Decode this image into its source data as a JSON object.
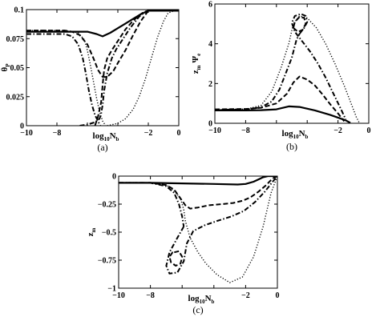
{
  "chart_data": [
    {
      "type": "line",
      "panel_label": "(a)",
      "xlabel_main": "log",
      "xlabel_sub": "10",
      "xlabel_tail": "N",
      "xlabel_tail_sub": "b",
      "ylabel_main": "θ",
      "ylabel_sub": "P",
      "xlim": [
        -10,
        0
      ],
      "ylim": [
        0,
        0.1
      ],
      "xticks": [
        -10,
        -8,
        -6,
        -4,
        -2,
        0
      ],
      "xtick_labels": [
        "−10",
        "−8",
        "",
        "",
        "−2",
        "0"
      ],
      "yticks": [
        0,
        0.025,
        0.05,
        0.075,
        0.1
      ],
      "ytick_labels": [
        "0",
        "0.025",
        "0.05",
        "0.075",
        "0.1"
      ],
      "grid": false,
      "series": [
        {
          "style": "solid",
          "x": [
            -10,
            -7,
            -6,
            -5.4,
            -5,
            -4.5,
            -4,
            -3.5,
            -3,
            -2.5,
            -2,
            -1,
            0
          ],
          "y": [
            0.081,
            0.081,
            0.081,
            0.079,
            0.077,
            0.08,
            0.084,
            0.088,
            0.092,
            0.096,
            0.099,
            0.099,
            0.099
          ]
        },
        {
          "style": "dashed",
          "x": [
            -10,
            -7.5,
            -7,
            -6.5,
            -6,
            -5.6,
            -5.3,
            -5,
            -4.7,
            -4.3,
            -4,
            -3.5,
            -3,
            -2.5,
            -2,
            -1,
            0
          ],
          "y": [
            0.082,
            0.082,
            0.081,
            0.078,
            0.07,
            0.058,
            0.048,
            0.042,
            0.042,
            0.047,
            0.054,
            0.065,
            0.078,
            0.09,
            0.099,
            0.099,
            0.099
          ]
        },
        {
          "style": "dashed",
          "x": [
            -5.5,
            -5.3,
            -5.1,
            -5.0,
            -4.9,
            -4.7,
            -4.4,
            -4.1,
            -3.8,
            -3.5,
            -3.1,
            -2.7,
            -2.3,
            -2.0
          ],
          "y": [
            0,
            0.008,
            0.02,
            0.035,
            0.048,
            0.058,
            0.065,
            0.071,
            0.077,
            0.083,
            0.089,
            0.094,
            0.098,
            0.099
          ]
        },
        {
          "style": "dashdot",
          "x": [
            -10,
            -7.5,
            -7,
            -6.6,
            -6.3,
            -6.1,
            -5.9,
            -5.7,
            -5.5,
            -5.3,
            -5.2,
            -5.15
          ],
          "y": [
            0.079,
            0.079,
            0.077,
            0.07,
            0.058,
            0.045,
            0.03,
            0.018,
            0.009,
            0.004,
            0.001,
            0
          ]
        },
        {
          "style": "dashdot",
          "x": [
            -6.5,
            -6,
            -5.5,
            -5.2,
            -5.1,
            -5.0,
            -4.9,
            -4.7,
            -4.4,
            -4.1,
            -3.8,
            -3.5,
            -3.2,
            -2.9,
            -2.6,
            -2.3,
            -2.0
          ],
          "y": [
            0,
            0.001,
            0.003,
            0.006,
            0.01,
            0.018,
            0.03,
            0.045,
            0.058,
            0.066,
            0.072,
            0.078,
            0.084,
            0.089,
            0.094,
            0.097,
            0.099
          ]
        },
        {
          "style": "dotted",
          "x": [
            -10,
            -7.5,
            -6.6,
            -6.2,
            -6.0,
            -5.8,
            -5.6,
            -5.4,
            -5.2,
            -5.0,
            -4.8
          ],
          "y": [
            0.082,
            0.082,
            0.08,
            0.074,
            0.065,
            0.052,
            0.038,
            0.024,
            0.012,
            0.004,
            0
          ]
        },
        {
          "style": "dotted",
          "x": [
            -4.7,
            -4,
            -3.5,
            -3,
            -2.6,
            -2.2,
            -1.8,
            -1.4,
            -1.0,
            -0.7,
            -0.3,
            0
          ],
          "y": [
            0,
            0.002,
            0.006,
            0.014,
            0.025,
            0.04,
            0.058,
            0.076,
            0.09,
            0.097,
            0.099,
            0.099
          ]
        }
      ]
    },
    {
      "type": "line",
      "panel_label": "(b)",
      "xlabel_main": "log",
      "xlabel_sub": "10",
      "xlabel_tail": "N",
      "xlabel_tail_sub": "b",
      "ylabel_main": "z",
      "ylabel_sub": "m",
      "ylabel_tail": "Ψ",
      "ylabel_tail_sub": "e",
      "xlim": [
        -10,
        0
      ],
      "ylim": [
        0,
        6
      ],
      "xticks": [
        -10,
        -8,
        -6,
        -4,
        -2,
        0
      ],
      "xtick_labels": [
        "−10",
        "−8",
        "",
        "",
        "−2",
        "0"
      ],
      "yticks": [
        0,
        2,
        4,
        6
      ],
      "ytick_labels": [
        "0",
        "2",
        "4",
        "6"
      ],
      "grid": false,
      "series": [
        {
          "style": "solid",
          "x": [
            -10,
            -8,
            -7,
            -6,
            -5.2,
            -4.5,
            -3.5,
            -2.5,
            -1.5,
            -1.2
          ],
          "y": [
            0.65,
            0.65,
            0.66,
            0.7,
            0.85,
            0.82,
            0.65,
            0.42,
            0.15,
            0.02
          ]
        },
        {
          "style": "dashed",
          "x": [
            -10,
            -8,
            -7,
            -6,
            -5.3,
            -4.9,
            -4.5,
            -4,
            -3.5,
            -3,
            -2.5,
            -2,
            -1.6
          ],
          "y": [
            0.7,
            0.72,
            0.78,
            1.0,
            1.5,
            2.05,
            2.35,
            2.2,
            1.9,
            1.45,
            0.95,
            0.5,
            0.1
          ]
        },
        {
          "style": "dashdot",
          "x": [
            -10,
            -8,
            -7,
            -6.3,
            -5.8,
            -5.4,
            -5.0,
            -4.7,
            -4.5
          ],
          "y": [
            0.68,
            0.7,
            0.8,
            1.1,
            1.7,
            2.5,
            3.3,
            4.2,
            4.5
          ]
        },
        {
          "style": "dashdot",
          "x": [
            -4.5,
            -4.2,
            -4.0,
            -4.1,
            -4.4,
            -4.8,
            -5.0,
            -4.8,
            -4.3,
            -3.8,
            -3.3,
            -2.8,
            -2.3,
            -1.8,
            -1.5
          ],
          "y": [
            4.5,
            4.8,
            5.1,
            5.4,
            5.5,
            5.4,
            5.05,
            4.6,
            4.1,
            3.6,
            3.0,
            2.3,
            1.5,
            0.7,
            0.2
          ]
        },
        {
          "style": "dashed",
          "x": [
            -4.9,
            -4.6,
            -4.3,
            -4.1,
            -4.2,
            -4.5,
            -4.8,
            -4.9
          ],
          "y": [
            4.8,
            4.6,
            4.7,
            5.0,
            5.3,
            5.35,
            5.1,
            4.8
          ]
        },
        {
          "style": "dotted",
          "x": [
            -10,
            -8,
            -7,
            -6.3,
            -5.7,
            -5.2,
            -4.9,
            -4.5,
            -4.0,
            -3.4,
            -2.8,
            -2.2,
            -1.6,
            -1.1,
            -0.8,
            -0.6
          ],
          "y": [
            0.68,
            0.7,
            0.9,
            1.6,
            2.8,
            4.0,
            5.0,
            5.4,
            5.3,
            4.8,
            4.0,
            3.0,
            1.9,
            0.9,
            0.3,
            0
          ]
        }
      ]
    },
    {
      "type": "line",
      "panel_label": "(c)",
      "xlabel_main": "log",
      "xlabel_sub": "10",
      "xlabel_tail": "N",
      "xlabel_tail_sub": "b",
      "ylabel_main": "z",
      "ylabel_sub": "m",
      "xlim": [
        -10,
        0
      ],
      "ylim": [
        -1,
        0
      ],
      "xticks": [
        -10,
        -8,
        -6,
        -4,
        -2,
        0
      ],
      "xtick_labels": [
        "−10",
        "−8",
        "",
        "",
        "−2",
        "0"
      ],
      "yticks": [
        -1,
        -0.75,
        -0.5,
        -0.25,
        0
      ],
      "ytick_labels": [
        "−1",
        "−0.75",
        "−0.5",
        "−0.25",
        "0"
      ],
      "grid": false,
      "series": [
        {
          "style": "solid",
          "x": [
            -10,
            -8,
            -6,
            -4,
            -2.5,
            -2,
            -1.5,
            -1.2,
            -0.9,
            -0.6,
            -0.3,
            0
          ],
          "y": [
            -0.06,
            -0.06,
            -0.065,
            -0.07,
            -0.075,
            -0.07,
            -0.05,
            -0.03,
            -0.01,
            0,
            0,
            0
          ]
        },
        {
          "style": "dashed",
          "x": [
            -10,
            -8,
            -7,
            -6.5,
            -6.1,
            -5.8,
            -5.5,
            -5.0,
            -4.3,
            -3.5,
            -2.8,
            -2.2,
            -1.7,
            -1.2,
            -0.7,
            -0.3,
            0
          ],
          "y": [
            -0.06,
            -0.06,
            -0.08,
            -0.12,
            -0.2,
            -0.26,
            -0.29,
            -0.28,
            -0.26,
            -0.25,
            -0.24,
            -0.22,
            -0.19,
            -0.14,
            -0.08,
            -0.02,
            0
          ]
        },
        {
          "style": "dashdot",
          "x": [
            -10,
            -8,
            -7,
            -6.5,
            -6.2,
            -6.0,
            -5.9
          ],
          "y": [
            -0.06,
            -0.06,
            -0.09,
            -0.15,
            -0.25,
            -0.36,
            -0.45
          ]
        },
        {
          "style": "dashdot",
          "x": [
            -5.9,
            -6.3,
            -6.8,
            -7.0,
            -6.8,
            -6.3,
            -5.9,
            -5.7,
            -5.3,
            -4.6,
            -3.8,
            -2.9,
            -2.1,
            -1.4,
            -0.8,
            -0.3,
            0
          ],
          "y": [
            -0.45,
            -0.55,
            -0.68,
            -0.8,
            -0.87,
            -0.86,
            -0.76,
            -0.6,
            -0.49,
            -0.44,
            -0.4,
            -0.36,
            -0.31,
            -0.23,
            -0.14,
            -0.05,
            0
          ]
        },
        {
          "style": "dashed",
          "x": [
            -6.5,
            -6.2,
            -6.0,
            -6.1,
            -6.4,
            -6.7,
            -6.8,
            -6.6,
            -6.5
          ],
          "y": [
            -0.68,
            -0.67,
            -0.72,
            -0.78,
            -0.8,
            -0.77,
            -0.72,
            -0.68,
            -0.68
          ]
        },
        {
          "style": "dotted",
          "x": [
            -10,
            -8,
            -7,
            -6.5,
            -6.1,
            -5.9,
            -5.8,
            -5.5,
            -5.0,
            -4.5,
            -3.8,
            -3.0,
            -2.2,
            -1.5,
            -0.9,
            -0.4,
            0
          ],
          "y": [
            -0.06,
            -0.06,
            -0.08,
            -0.13,
            -0.2,
            -0.3,
            -0.4,
            -0.55,
            -0.68,
            -0.78,
            -0.88,
            -0.95,
            -0.9,
            -0.72,
            -0.45,
            -0.15,
            0
          ]
        }
      ]
    }
  ]
}
